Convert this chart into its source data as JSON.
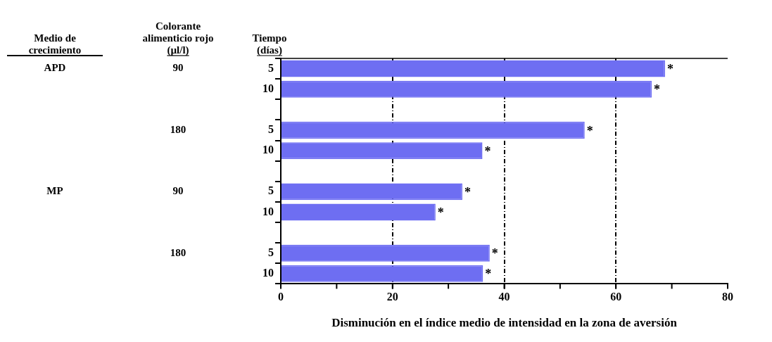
{
  "chart_data": {
    "type": "bar",
    "orientation": "horizontal",
    "xlabel": "Disminución en el índice medio de intensidad en la zona de aversión",
    "ylabel": "Tiempo (días)",
    "annotations": [
      "Medio de crecimiento",
      "Colorante alimenticio rojo (µl/l)",
      "APD",
      "90",
      "180",
      "MP",
      "90",
      "180"
    ],
    "categories": [
      "5",
      "10",
      null,
      "5",
      "10",
      null,
      "5",
      "10",
      null,
      "5",
      "10"
    ],
    "values": [
      68.8,
      66.4,
      null,
      54.4,
      36.1,
      null,
      32.5,
      27.7,
      null,
      37.4,
      36.2
    ],
    "value_labels": [
      "*",
      "*",
      null,
      "*",
      "*",
      null,
      "*",
      "*",
      null,
      "*",
      "*"
    ],
    "color": "#6e6ef2",
    "xlim": [
      0,
      80
    ],
    "xticks": [
      0,
      {
        "value": 10,
        "label": null
      },
      20,
      {
        "value": 30,
        "label": null
      },
      40,
      {
        "value": 50,
        "label": null
      },
      60,
      {
        "value": 70,
        "label": null
      },
      80
    ],
    "grid": "x",
    "line_style": "dashed",
    "legend": false
  }
}
